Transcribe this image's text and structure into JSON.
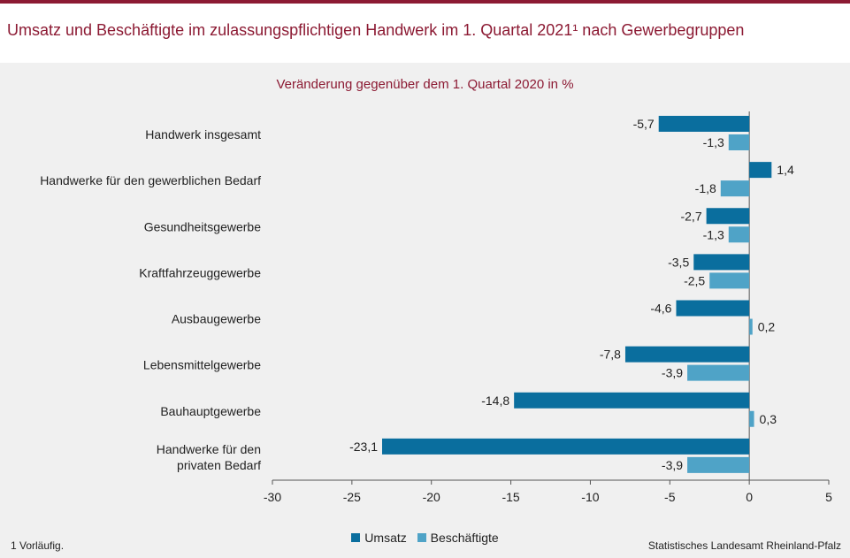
{
  "header": {
    "title": "Umsatz und Beschäftigte im zulassungspflichtigen Handwerk im 1. Quartal 2021¹ nach Gewerbegruppen"
  },
  "colors": {
    "title": "#8c1a33",
    "umsatz": "#0a6e9e",
    "beschaeftigte": "#4fa3c7"
  },
  "legend": {
    "umsatz": "Umsatz",
    "beschaeftigte": "Beschäftigte"
  },
  "footnote": "1 Vorläufig.",
  "source": "Statistisches Landesamt Rheinland-Pfalz",
  "chart_data": {
    "type": "bar",
    "orientation": "horizontal",
    "subtitle": "Veränderung gegenüber dem 1. Quartal 2020 in %",
    "categories": [
      "Handwerk insgesamt",
      "Handwerke für den gewerblichen Bedarf",
      "Gesundheitsgewerbe",
      "Kraftfahrzeuggewerbe",
      "Ausbaugewerbe",
      "Lebensmittelgewerbe",
      "Bauhauptgewerbe",
      "Handwerke für den\nprivaten Bedarf"
    ],
    "series": [
      {
        "name": "Umsatz",
        "values": [
          -5.7,
          1.4,
          -2.7,
          -3.5,
          -4.6,
          -7.8,
          -14.8,
          -23.1
        ],
        "labels": [
          "-5,7",
          "1,4",
          "-2,7",
          "-3,5",
          "-4,6",
          "-7,8",
          "-14,8",
          "-23,1"
        ]
      },
      {
        "name": "Beschäftigte",
        "values": [
          -1.3,
          -1.8,
          -1.3,
          -2.5,
          0.2,
          -3.9,
          0.3,
          -3.9
        ],
        "labels": [
          "-1,3",
          "-1,8",
          "-1,3",
          "-2,5",
          "0,2",
          "-3,9",
          "0,3",
          "-3,9"
        ]
      }
    ],
    "xlim": [
      -30,
      5
    ],
    "xticks": [
      -30,
      -25,
      -20,
      -15,
      -10,
      -5,
      0,
      5
    ],
    "grid": false,
    "legend_position": "bottom"
  }
}
